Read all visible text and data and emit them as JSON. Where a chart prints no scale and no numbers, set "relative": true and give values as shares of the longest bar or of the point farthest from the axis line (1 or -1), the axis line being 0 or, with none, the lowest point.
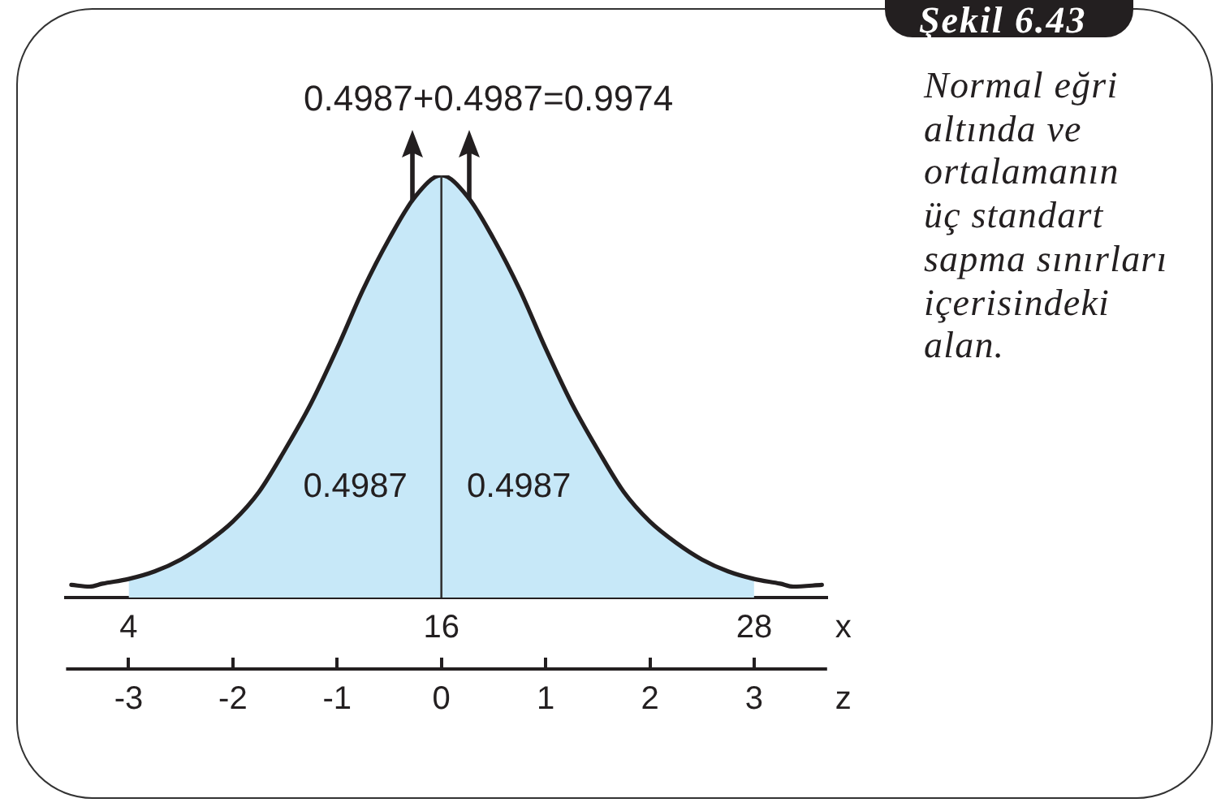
{
  "chart_data": {
    "type": "area",
    "title": "Şekil 6.43",
    "subtitle": "Normal eğri\naltında ve\nortalamanın\nüç standart\nsapma sınırları\niçerisindeki\nalan.",
    "xlabel": "x",
    "x2label": "z",
    "relative": true,
    "series": [
      {
        "color": "#c7e8f8",
        "x": [
          4,
          5,
          6,
          7,
          8,
          9,
          10,
          11,
          12,
          13,
          14,
          15,
          16,
          17,
          18,
          19,
          20,
          21,
          22,
          23,
          24,
          25,
          26,
          27,
          28
        ],
        "values": [
          0.044,
          0.062,
          0.09,
          0.13,
          0.18,
          0.25,
          0.35,
          0.46,
          0.59,
          0.73,
          0.85,
          0.95,
          1,
          0.95,
          0.85,
          0.73,
          0.59,
          0.46,
          0.35,
          0.25,
          0.18,
          0.13,
          0.09,
          0.062,
          0.044
        ]
      },
      {
        "type": "line",
        "color": "#231f20",
        "x": [
          1.8,
          2.5,
          3,
          4,
          5,
          6,
          7,
          8,
          9,
          10,
          11,
          12,
          13,
          14,
          15,
          16,
          17,
          18,
          19,
          20,
          21,
          22,
          23,
          24,
          25,
          26,
          27,
          28,
          29,
          29.5,
          30.6
        ],
        "values": [
          0.03,
          0.026,
          0.033,
          0.044,
          0.062,
          0.09,
          0.13,
          0.18,
          0.25,
          0.35,
          0.46,
          0.59,
          0.73,
          0.85,
          0.95,
          1,
          0.95,
          0.85,
          0.73,
          0.59,
          0.46,
          0.35,
          0.25,
          0.18,
          0.13,
          0.09,
          0.062,
          0.044,
          0.033,
          0.026,
          0.03
        ]
      }
    ],
    "xlim": [
      1.6,
      30.8
    ],
    "xticks": [
      4,
      16,
      28
    ],
    "x2lim": [
      -3.6,
      3.7
    ],
    "x2ticks": [
      -3,
      -2,
      -1,
      0,
      1,
      2,
      3
    ],
    "ref_lines": [
      {
        "axis": "x",
        "value": 16,
        "color": "#333333"
      }
    ],
    "annotations": [
      "0.4987+0.4987=0.9974",
      "0.4987",
      "0.4987"
    ]
  }
}
